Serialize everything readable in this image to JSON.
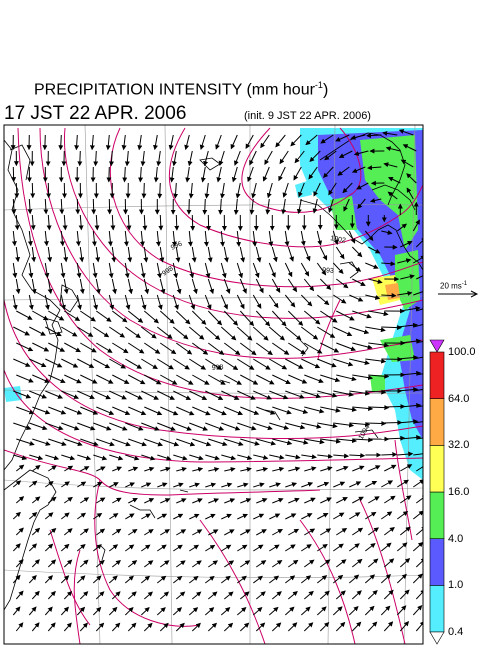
{
  "title": {
    "main": "PRECIPITATION INTENSITY (mm hour",
    "exponent": "-1",
    "close": ")"
  },
  "valid_time": "17 JST 22 APR. 2006",
  "init_time": "(init. 9 JST 22 APR. 2006)",
  "reference_vector": {
    "label": "20 ms",
    "exponent": "-1"
  },
  "colorbar": {
    "levels": [
      "0.4",
      "1.0",
      "4.0",
      "16.0",
      "32.0",
      "64.0",
      "100.0"
    ],
    "colors": [
      "#55eeff",
      "#5a5aff",
      "#55ee55",
      "#ffff55",
      "#ffaa44",
      "#ee2222",
      "#cc33ff"
    ]
  },
  "contour_labels": [
    "996",
    "1002",
    "998",
    "993",
    "998",
    "1004"
  ],
  "colors": {
    "isobar": "#cc0066",
    "coast": "#000000",
    "grid": "#999999"
  }
}
